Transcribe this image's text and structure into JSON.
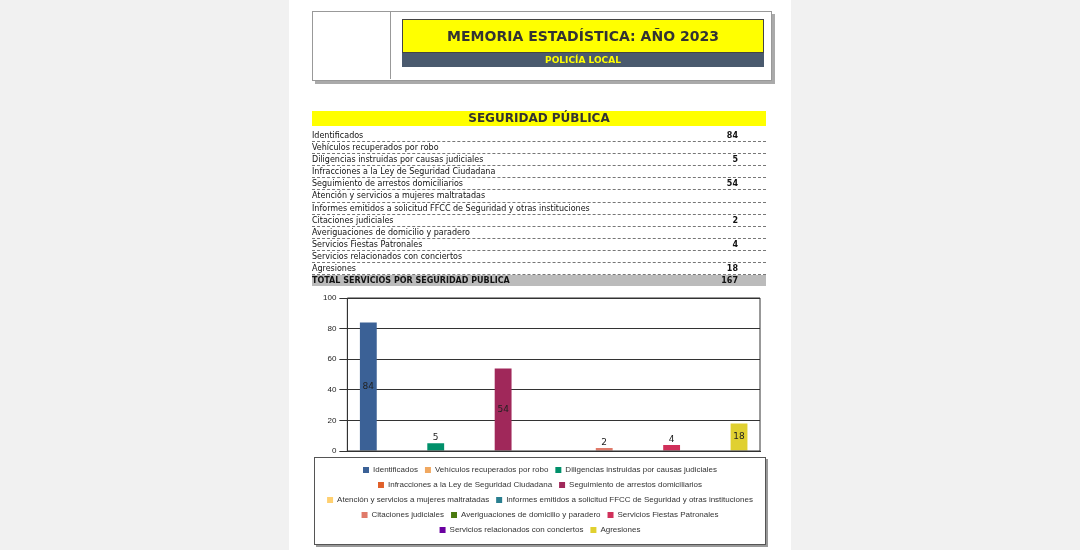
{
  "chart_data": {
    "type": "bar",
    "title": "MEMORIA ESTADÍSTICA: AÑO 2023",
    "subtitle": "POLICÍA LOCAL",
    "annotations": [
      "SEGURIDAD PÚBLICA",
      "84",
      "5",
      "54",
      "2",
      "4",
      "18",
      "TOTAL SERVICIOS POR SEGURIDAD PUBLICA",
      "167"
    ],
    "categories": [
      null
    ],
    "series": [
      {
        "name": "Identificados",
        "color": "#3b6196",
        "values": [
          84
        ]
      },
      {
        "name": "Vehículos recuperados por robo",
        "color": "#f0a860",
        "values": [
          null
        ]
      },
      {
        "name": "Diligencias instruidas por causas judiciales",
        "color": "#00906a",
        "values": [
          5
        ]
      },
      {
        "name": "Infracciones a la Ley de Seguridad Ciudadana",
        "color": "#e0602a",
        "values": [
          null
        ]
      },
      {
        "name": "Seguimiento de arrestos domiciliarios",
        "color": "#a0285a",
        "values": [
          54
        ]
      },
      {
        "name": "Atención y servicios a mujeres maltratadas",
        "color": "#ffd070",
        "values": [
          null
        ]
      },
      {
        "name": "Informes emitidos a solicitud FFCC de Seguridad y otras instituciones",
        "color": "#2a7f90",
        "values": [
          null
        ]
      },
      {
        "name": "Citaciones judiciales",
        "color": "#e07a6a",
        "values": [
          2
        ]
      },
      {
        "name": "Averiguaciones de domicilio y paradero",
        "color": "#4a7a10",
        "values": [
          null
        ]
      },
      {
        "name": "Servicios Fiestas Patronales",
        "color": "#d0305a",
        "values": [
          4
        ]
      },
      {
        "name": "Servicios relacionados con conciertos",
        "color": "#6a00a0",
        "values": [
          null
        ]
      },
      {
        "name": "Agresiones",
        "color": "#e0d030",
        "values": [
          18
        ]
      }
    ],
    "ylim": [
      0,
      100
    ],
    "yticks": [
      0,
      20,
      40,
      60,
      80,
      100
    ],
    "grid": "y",
    "legend": "bottom",
    "tick_labels": "y",
    "data_labels": true
  }
}
